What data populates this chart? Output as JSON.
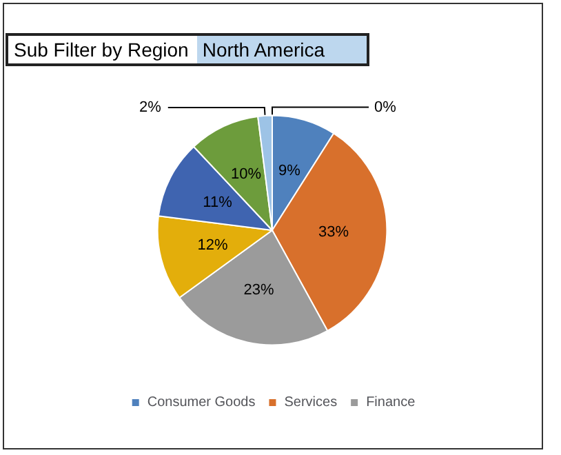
{
  "chart_data": {
    "type": "pie",
    "annotations": [
      "Sub Filter by Region",
      "North America"
    ],
    "categories": [
      "Consumer Goods",
      "Services",
      "Finance",
      null,
      null,
      null,
      null,
      null
    ],
    "values": [
      9,
      33,
      23,
      12,
      11,
      10,
      2,
      0
    ],
    "colors": [
      "#4f81bd",
      "#d8702c",
      "#9b9b9b",
      "#e3ae0b",
      "#3f64b0",
      "#6d9c3c",
      "#9dc3e6",
      "#4f81bd"
    ],
    "value_labels": [
      "9%",
      "33%",
      "23%",
      "12%",
      "11%",
      "10%",
      "2%",
      "0%"
    ],
    "legend": "bottom"
  }
}
